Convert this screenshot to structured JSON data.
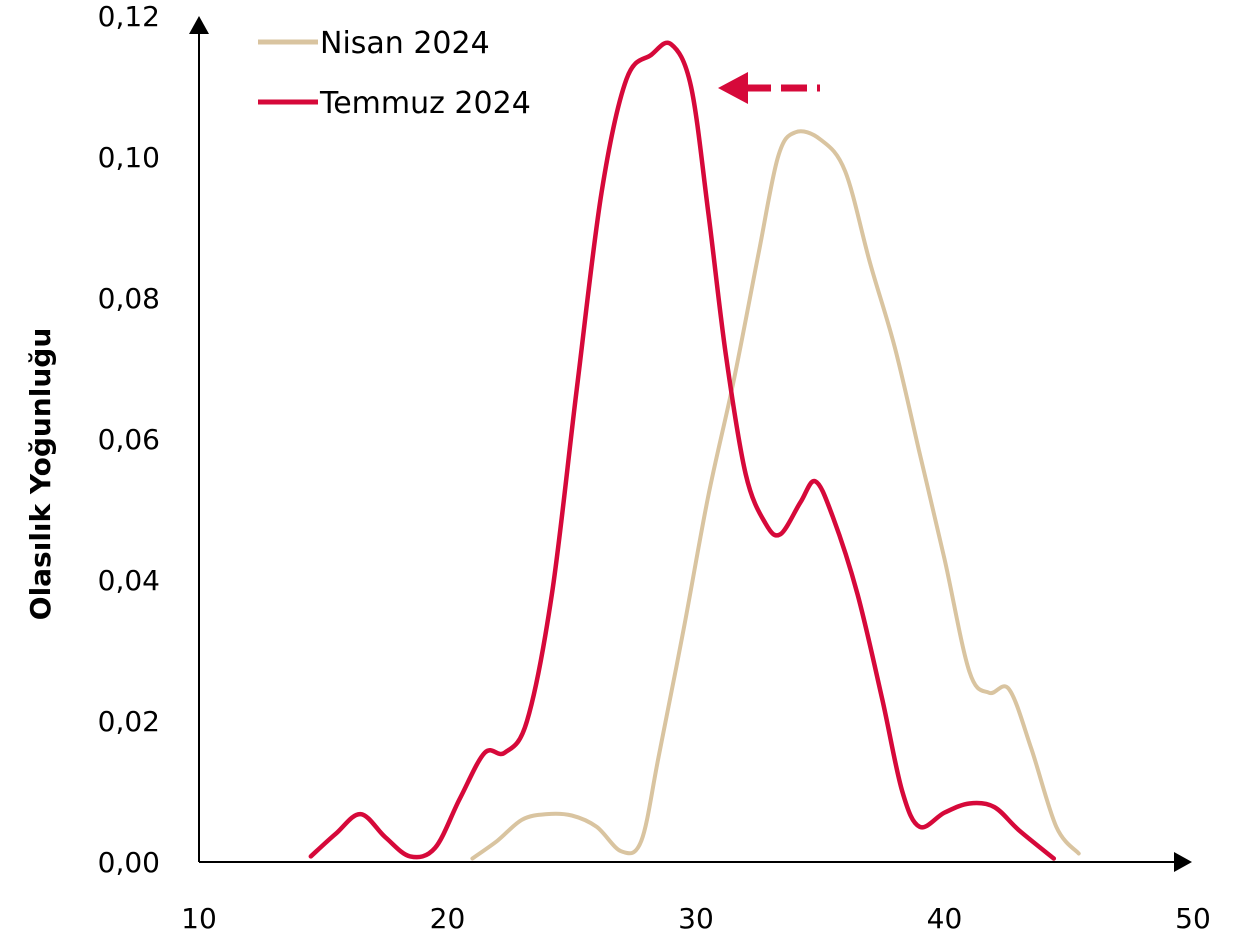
{
  "chart_data": {
    "type": "line",
    "title": "",
    "xlabel": "",
    "ylabel": "Olasılık Yoğunluğu",
    "xlim": [
      10,
      50
    ],
    "ylim": [
      0,
      0.12
    ],
    "x_ticks": [
      "10",
      "20",
      "30",
      "40",
      "50"
    ],
    "y_ticks": [
      "0,00",
      "0,02",
      "0,04",
      "0,06",
      "0,08",
      "0,10",
      "0,12"
    ],
    "grid": false,
    "legend_position": "top-left",
    "series": [
      {
        "name": "Nisan 2024",
        "color": "#d9c4a0",
        "points": [
          [
            21.0,
            0.0005
          ],
          [
            22.0,
            0.003
          ],
          [
            23.0,
            0.006
          ],
          [
            24.0,
            0.0068
          ],
          [
            25.0,
            0.0066
          ],
          [
            26.0,
            0.005
          ],
          [
            27.0,
            0.0015
          ],
          [
            27.8,
            0.003
          ],
          [
            28.5,
            0.015
          ],
          [
            29.5,
            0.033
          ],
          [
            30.5,
            0.052
          ],
          [
            31.5,
            0.068
          ],
          [
            32.5,
            0.086
          ],
          [
            33.3,
            0.1
          ],
          [
            34.0,
            0.1035
          ],
          [
            35.0,
            0.1025
          ],
          [
            36.0,
            0.098
          ],
          [
            37.0,
            0.085
          ],
          [
            38.0,
            0.073
          ],
          [
            39.0,
            0.058
          ],
          [
            40.0,
            0.043
          ],
          [
            41.0,
            0.027
          ],
          [
            41.8,
            0.024
          ],
          [
            42.6,
            0.0245
          ],
          [
            43.5,
            0.016
          ],
          [
            44.5,
            0.005
          ],
          [
            45.4,
            0.0012
          ]
        ]
      },
      {
        "name": "Temmuz 2024",
        "color": "#d6093a",
        "points": [
          [
            14.5,
            0.0008
          ],
          [
            15.5,
            0.004
          ],
          [
            16.5,
            0.0068
          ],
          [
            17.5,
            0.0035
          ],
          [
            18.5,
            0.0008
          ],
          [
            19.5,
            0.002
          ],
          [
            20.5,
            0.009
          ],
          [
            21.5,
            0.0155
          ],
          [
            22.3,
            0.0155
          ],
          [
            23.2,
            0.02
          ],
          [
            24.2,
            0.038
          ],
          [
            25.2,
            0.067
          ],
          [
            26.2,
            0.095
          ],
          [
            27.2,
            0.111
          ],
          [
            28.2,
            0.1145
          ],
          [
            29.0,
            0.116
          ],
          [
            29.8,
            0.11
          ],
          [
            30.5,
            0.092
          ],
          [
            31.2,
            0.072
          ],
          [
            32.0,
            0.055
          ],
          [
            32.8,
            0.048
          ],
          [
            33.4,
            0.0465
          ],
          [
            34.2,
            0.051
          ],
          [
            34.8,
            0.054
          ],
          [
            35.5,
            0.049
          ],
          [
            36.5,
            0.038
          ],
          [
            37.5,
            0.023
          ],
          [
            38.3,
            0.01
          ],
          [
            39.0,
            0.005
          ],
          [
            40.0,
            0.007
          ],
          [
            41.0,
            0.0083
          ],
          [
            42.0,
            0.0078
          ],
          [
            43.0,
            0.0045
          ],
          [
            44.4,
            0.0005
          ]
        ]
      }
    ],
    "annotation": {
      "type": "arrow",
      "direction": "left",
      "style": "dashed",
      "color": "#d6093a"
    }
  }
}
